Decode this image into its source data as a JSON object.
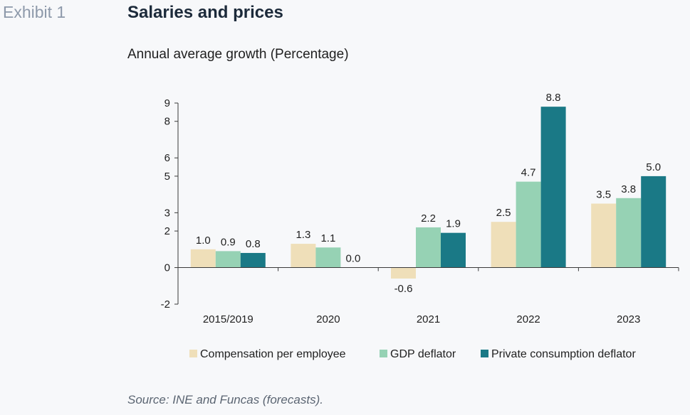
{
  "header": {
    "exhibit": "Exhibit 1",
    "title": "Salaries and prices",
    "subtitle": "Annual average growth (Percentage)"
  },
  "footer": {
    "source": "Source: INE and Funcas (forecasts)."
  },
  "chart_data": {
    "type": "bar",
    "categories": [
      "2015/2019",
      "2020",
      "2021",
      "2022",
      "2023"
    ],
    "series": [
      {
        "name": "Compensation per employee",
        "color": "#efdfb9",
        "values": [
          1.0,
          1.3,
          -0.6,
          2.5,
          3.5
        ],
        "labels": [
          "1.0",
          "1.3",
          "-0.6",
          "2.5",
          "3.5"
        ]
      },
      {
        "name": "GDP deflator",
        "color": "#96d2b4",
        "values": [
          0.9,
          1.1,
          2.2,
          4.7,
          3.8
        ],
        "labels": [
          "0.9",
          "1.1",
          "2.2",
          "4.7",
          "3.8"
        ]
      },
      {
        "name": "Private consumption deflator",
        "color": "#1a7986",
        "values": [
          0.8,
          0.0,
          1.9,
          8.8,
          5.0
        ],
        "labels": [
          "0.8",
          "0.0",
          "1.9",
          "8.8",
          "5.0"
        ]
      }
    ],
    "y_ticks": [
      "9",
      "8",
      "6",
      "5",
      "3",
      "2",
      "0",
      "-2"
    ],
    "ylim": [
      -2,
      9
    ],
    "grid": false,
    "legend": "bottom"
  }
}
